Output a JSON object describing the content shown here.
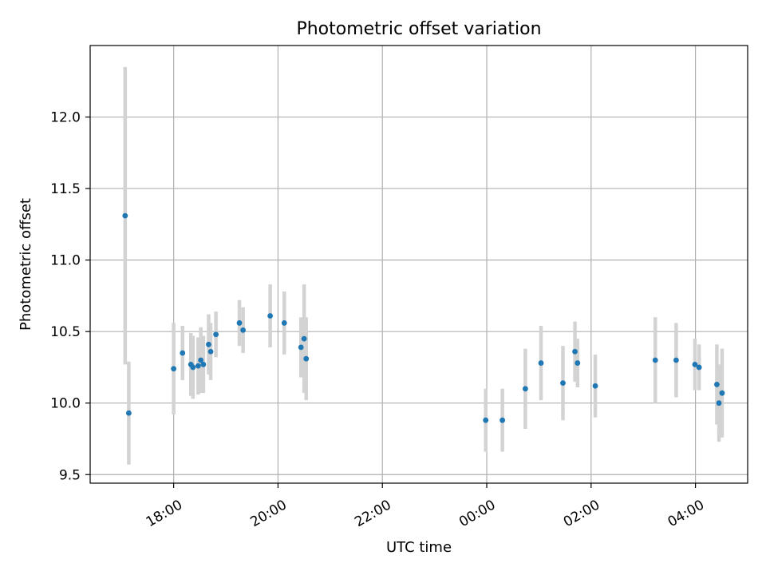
{
  "chart_data": {
    "type": "scatter",
    "title": "Photometric offset variation",
    "xlabel": "UTC time",
    "ylabel": "Photometric offset",
    "x_unit": "hours since 00:00 UTC (day boundary at 00:00)",
    "xlim": [
      -7.6,
      5.0
    ],
    "ylim": [
      9.44,
      12.5
    ],
    "grid": true,
    "x_ticks": [
      -6,
      -4,
      -2,
      0,
      2,
      4
    ],
    "x_tick_labels": [
      "18:00",
      "20:00",
      "22:00",
      "00:00",
      "02:00",
      "04:00"
    ],
    "y_ticks": [
      9.5,
      10.0,
      10.5,
      11.0,
      11.5,
      12.0
    ],
    "y_tick_labels": [
      "9.5",
      "10.0",
      "10.5",
      "11.0",
      "11.5",
      "12.0"
    ],
    "colors": {
      "point": "#1f77b4",
      "errorbar": "#d3d3d3",
      "grid": "#b0b0b0"
    },
    "series": [
      {
        "x": [
          -6.93,
          -6.86,
          -6.0,
          -5.83,
          -5.67,
          -5.63,
          -5.53,
          -5.48,
          -5.43,
          -5.33,
          -5.29,
          -5.19,
          -4.74,
          -4.67,
          -4.15,
          -3.88,
          -3.56,
          -3.5,
          -3.46,
          0.3,
          1.46,
          -0.02,
          0.74,
          1.04,
          1.69,
          1.74,
          2.08,
          3.23,
          3.63,
          3.99,
          4.07,
          4.41,
          4.45,
          4.51
        ],
        "y": [
          11.31,
          9.93,
          10.24,
          10.35,
          10.27,
          10.25,
          10.26,
          10.3,
          10.27,
          10.41,
          10.36,
          10.48,
          10.56,
          10.51,
          10.61,
          10.56,
          10.39,
          10.45,
          10.31,
          9.88,
          10.14,
          9.88,
          10.1,
          10.28,
          10.36,
          10.28,
          10.12,
          10.3,
          10.3,
          10.27,
          10.25,
          10.13,
          10.0,
          10.07
        ],
        "yerr": [
          1.04,
          0.36,
          0.32,
          0.19,
          0.22,
          0.22,
          0.2,
          0.23,
          0.2,
          0.21,
          0.2,
          0.16,
          0.16,
          0.16,
          0.22,
          0.22,
          0.21,
          0.38,
          0.29,
          0.22,
          0.26,
          0.22,
          0.28,
          0.26,
          0.21,
          0.17,
          0.22,
          0.3,
          0.26,
          0.18,
          0.16,
          0.28,
          0.27,
          0.31
        ]
      }
    ]
  }
}
